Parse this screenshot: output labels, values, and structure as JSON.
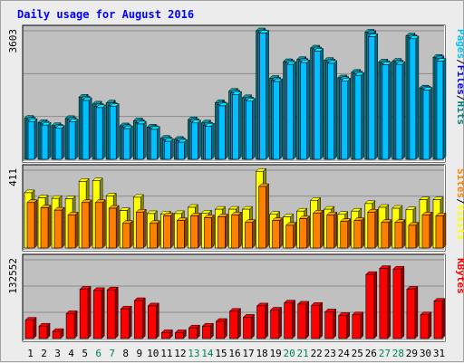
{
  "title": "Daily usage for August 2016",
  "colors": {
    "title": "#0000ff",
    "panel_bg": "#c0c0c0",
    "grid": "#8c8c8c",
    "hits": "#008080",
    "files": "#00c0ff",
    "pages": "#0080c0",
    "visits": "#ffff00",
    "sites": "#ff8000",
    "kbytes": "#ff0000",
    "weekend_label": "#00805c"
  },
  "chart_data": [
    {
      "type": "bar",
      "name": "hits-files-pages",
      "ytick_label": "3603",
      "ymax": 3603,
      "legend": [
        {
          "label": "Pages",
          "color": "#00c0ff"
        },
        {
          "label": "Files",
          "color": "#0000ff"
        },
        {
          "label": "Hits",
          "color": "#008080"
        }
      ],
      "categories": [
        "1",
        "2",
        "3",
        "4",
        "5",
        "6",
        "7",
        "8",
        "9",
        "10",
        "11",
        "12",
        "13",
        "14",
        "15",
        "16",
        "17",
        "18",
        "19",
        "20",
        "21",
        "22",
        "23",
        "24",
        "25",
        "26",
        "27",
        "28",
        "29",
        "30",
        "31"
      ],
      "series": [
        {
          "name": "Hits",
          "values": [
            1150,
            1030,
            945,
            1145,
            1745,
            1550,
            1580,
            940,
            1080,
            905,
            590,
            560,
            1110,
            1020,
            1590,
            1910,
            1730,
            3603,
            2270,
            2740,
            2800,
            3120,
            2775,
            2285,
            2440,
            3565,
            2730,
            2750,
            3460,
            2000,
            2860
          ]
        },
        {
          "name": "Files",
          "values": [
            1100,
            990,
            900,
            1100,
            1690,
            1480,
            1505,
            895,
            1030,
            865,
            550,
            520,
            1060,
            960,
            1530,
            1860,
            1670,
            3550,
            2220,
            2700,
            2750,
            3070,
            2730,
            2240,
            2395,
            3530,
            2685,
            2700,
            3410,
            1975,
            2820
          ]
        },
        {
          "name": "Pages",
          "values": [
            1060,
            960,
            870,
            1050,
            1650,
            1450,
            1480,
            860,
            990,
            840,
            505,
            480,
            1020,
            930,
            1500,
            1820,
            1630,
            3540,
            2180,
            2660,
            2710,
            3030,
            2690,
            2200,
            2355,
            3440,
            2650,
            2660,
            3380,
            1940,
            2750
          ]
        }
      ]
    },
    {
      "type": "bar",
      "name": "visits-sites",
      "ytick_label": "411",
      "ymax": 411,
      "legend": [
        {
          "label": "Sites",
          "color": "#ff8000"
        },
        {
          "label": "Visits",
          "color": "#ffff00"
        }
      ],
      "categories": [
        "1",
        "2",
        "3",
        "4",
        "5",
        "6",
        "7",
        "8",
        "9",
        "10",
        "11",
        "12",
        "13",
        "14",
        "15",
        "16",
        "17",
        "18",
        "19",
        "20",
        "21",
        "22",
        "23",
        "24",
        "25",
        "26",
        "27",
        "28",
        "29",
        "30",
        "31"
      ],
      "series": [
        {
          "name": "Visits",
          "values": [
            292,
            265,
            262,
            260,
            352,
            355,
            275,
            198,
            268,
            182,
            180,
            182,
            215,
            185,
            205,
            205,
            205,
            405,
            178,
            165,
            195,
            252,
            205,
            178,
            195,
            235,
            215,
            210,
            202,
            255,
            255
          ]
        },
        {
          "name": "Sites",
          "values": [
            240,
            212,
            200,
            175,
            240,
            240,
            210,
            130,
            190,
            130,
            170,
            145,
            170,
            160,
            165,
            175,
            135,
            325,
            145,
            120,
            155,
            185,
            175,
            140,
            145,
            190,
            135,
            135,
            120,
            175,
            170
          ]
        }
      ]
    },
    {
      "type": "bar",
      "name": "kbytes",
      "ytick_label": "132552",
      "ymax": 132552,
      "legend": [
        {
          "label": "KBytes",
          "color": "#ff0000"
        }
      ],
      "categories": [
        "1",
        "2",
        "3",
        "4",
        "5",
        "6",
        "7",
        "8",
        "9",
        "10",
        "11",
        "12",
        "13",
        "14",
        "15",
        "16",
        "17",
        "18",
        "19",
        "20",
        "21",
        "22",
        "23",
        "24",
        "25",
        "26",
        "27",
        "28",
        "29",
        "30",
        "31"
      ],
      "series": [
        {
          "name": "KBytes",
          "values": [
            31000,
            21000,
            12000,
            42000,
            83000,
            81000,
            82000,
            50000,
            64000,
            55000,
            10000,
            10000,
            18000,
            21000,
            29000,
            46000,
            36000,
            55000,
            48000,
            60000,
            58000,
            56000,
            45000,
            39000,
            40000,
            108000,
            118000,
            117000,
            83000,
            40000,
            63000
          ]
        }
      ]
    }
  ],
  "weekend_days": [
    6,
    7,
    13,
    14,
    20,
    21,
    27,
    28
  ]
}
